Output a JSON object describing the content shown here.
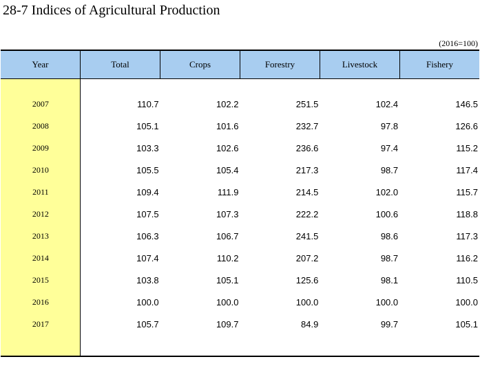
{
  "title": "28-7  Indices of Agricultural Production",
  "unit_note": "(2016=100)",
  "columns": [
    "Year",
    "Total",
    "Crops",
    "Forestry",
    "Livestock",
    "Fishery"
  ],
  "rows": [
    {
      "year": "2007",
      "values": [
        "110.7",
        "102.2",
        "251.5",
        "102.4",
        "146.5"
      ]
    },
    {
      "year": "2008",
      "values": [
        "105.1",
        "101.6",
        "232.7",
        "97.8",
        "126.6"
      ]
    },
    {
      "year": "2009",
      "values": [
        "103.3",
        "102.6",
        "236.6",
        "97.4",
        "115.2"
      ]
    },
    {
      "year": "2010",
      "values": [
        "105.5",
        "105.4",
        "217.3",
        "98.7",
        "117.4"
      ]
    },
    {
      "year": "2011",
      "values": [
        "109.4",
        "111.9",
        "214.5",
        "102.0",
        "115.7"
      ]
    },
    {
      "year": "2012",
      "values": [
        "107.5",
        "107.3",
        "222.2",
        "100.6",
        "118.8"
      ]
    },
    {
      "year": "2013",
      "values": [
        "106.3",
        "106.7",
        "241.5",
        "98.6",
        "117.3"
      ]
    },
    {
      "year": "2014",
      "values": [
        "107.4",
        "110.2",
        "207.2",
        "98.7",
        "116.2"
      ]
    },
    {
      "year": "2015",
      "values": [
        "103.8",
        "105.1",
        "125.6",
        "98.1",
        "110.5"
      ]
    },
    {
      "year": "2016",
      "values": [
        "100.0",
        "100.0",
        "100.0",
        "100.0",
        "100.0"
      ]
    },
    {
      "year": "2017",
      "values": [
        "105.7",
        "109.7",
        "84.9",
        "99.7",
        "105.1"
      ]
    }
  ],
  "colors": {
    "header_bg": "#a8cdf0",
    "year_col_bg": "#ffff99"
  }
}
